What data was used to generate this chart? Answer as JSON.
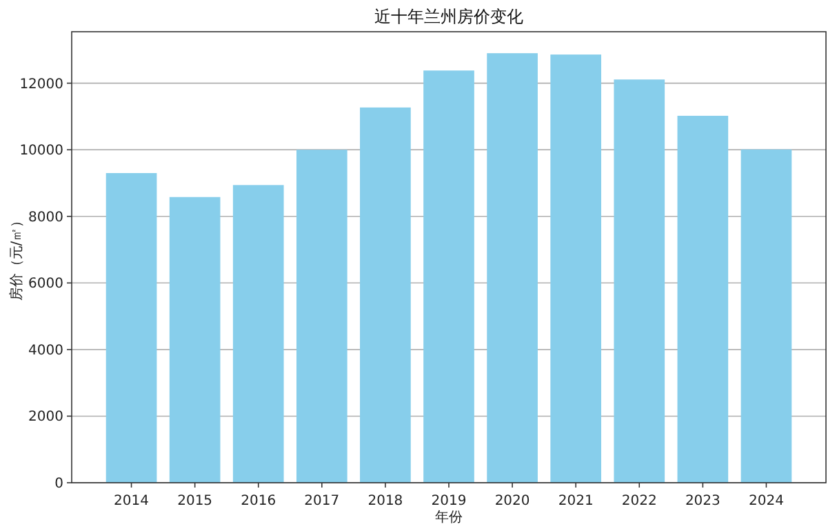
{
  "chart_data": {
    "type": "bar",
    "title": "近十年兰州房价变化",
    "xlabel": "年份",
    "ylabel": "房价（元/㎡）",
    "categories": [
      "2014",
      "2015",
      "2016",
      "2017",
      "2018",
      "2019",
      "2020",
      "2021",
      "2022",
      "2023",
      "2024"
    ],
    "values": [
      9300,
      8580,
      8940,
      10000,
      11270,
      12380,
      12900,
      12860,
      12110,
      11020,
      10010
    ],
    "color": "#87ceeb",
    "ylim": [
      0,
      13545
    ],
    "yticks": [
      0,
      2000,
      4000,
      6000,
      8000,
      10000,
      12000
    ],
    "grid": "y"
  }
}
